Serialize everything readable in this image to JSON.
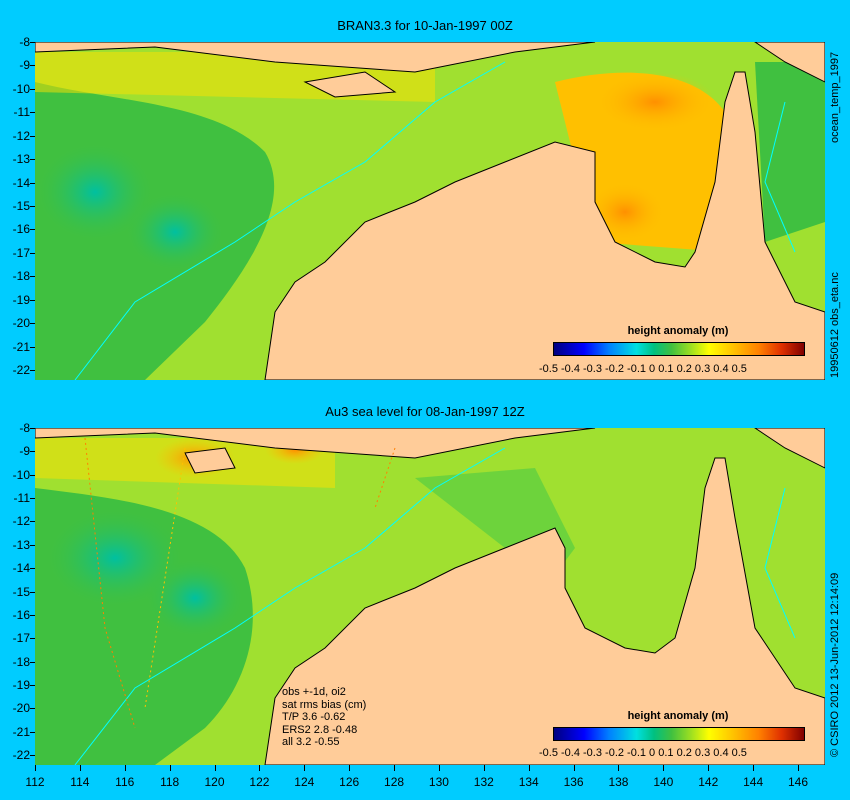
{
  "panels": [
    {
      "title": "BRAN3.3 for 10-Jan-1997 00Z",
      "legend_title": "height anomaly (m)",
      "legend_ticks": "-0.5 -0.4 -0.3 -0.2 -0.1   0   0.1  0.2  0.3  0.4  0.5",
      "side_label_upper": "ocean_temp_1997",
      "side_label_lower": "19950612 obs_eta.nc"
    },
    {
      "title": "Au3 sea level  for 08-Jan-1997 12Z",
      "legend_title": "height anomaly (m)",
      "legend_ticks": "-0.5 -0.4 -0.3 -0.2 -0.1   0   0.1  0.2  0.3  0.4  0.5",
      "side_label_upper": "© CSIRO 2012  13-Jun-2012 12:14:09",
      "stats": [
        "obs +-1d, oi2",
        "sat rms bias (cm)",
        "T/P  3.6 -0.62",
        "ERS2 2.8 -0.48",
        "all 3.2 -0.55"
      ]
    }
  ],
  "y_ticks": [
    "-8",
    "-9",
    "-10",
    "-11",
    "-12",
    "-13",
    "-14",
    "-15",
    "-16",
    "-17",
    "-18",
    "-19",
    "-20",
    "-21",
    "-22"
  ],
  "x_ticks": [
    "112",
    "114",
    "116",
    "118",
    "120",
    "122",
    "124",
    "126",
    "128",
    "130",
    "132",
    "134",
    "136",
    "138",
    "140",
    "142",
    "144",
    "146"
  ],
  "colors": {
    "background": "#00ccff",
    "land": "#ffcc99",
    "coast_outline": "#000000",
    "bathymetry_contour": "#00ffff"
  },
  "colorbar": [
    "#00007f",
    "#0000ff",
    "#0080ff",
    "#00e0e0",
    "#00c080",
    "#40c040",
    "#a0e020",
    "#ffff00",
    "#ffc000",
    "#ff8000",
    "#e03000",
    "#800000"
  ]
}
